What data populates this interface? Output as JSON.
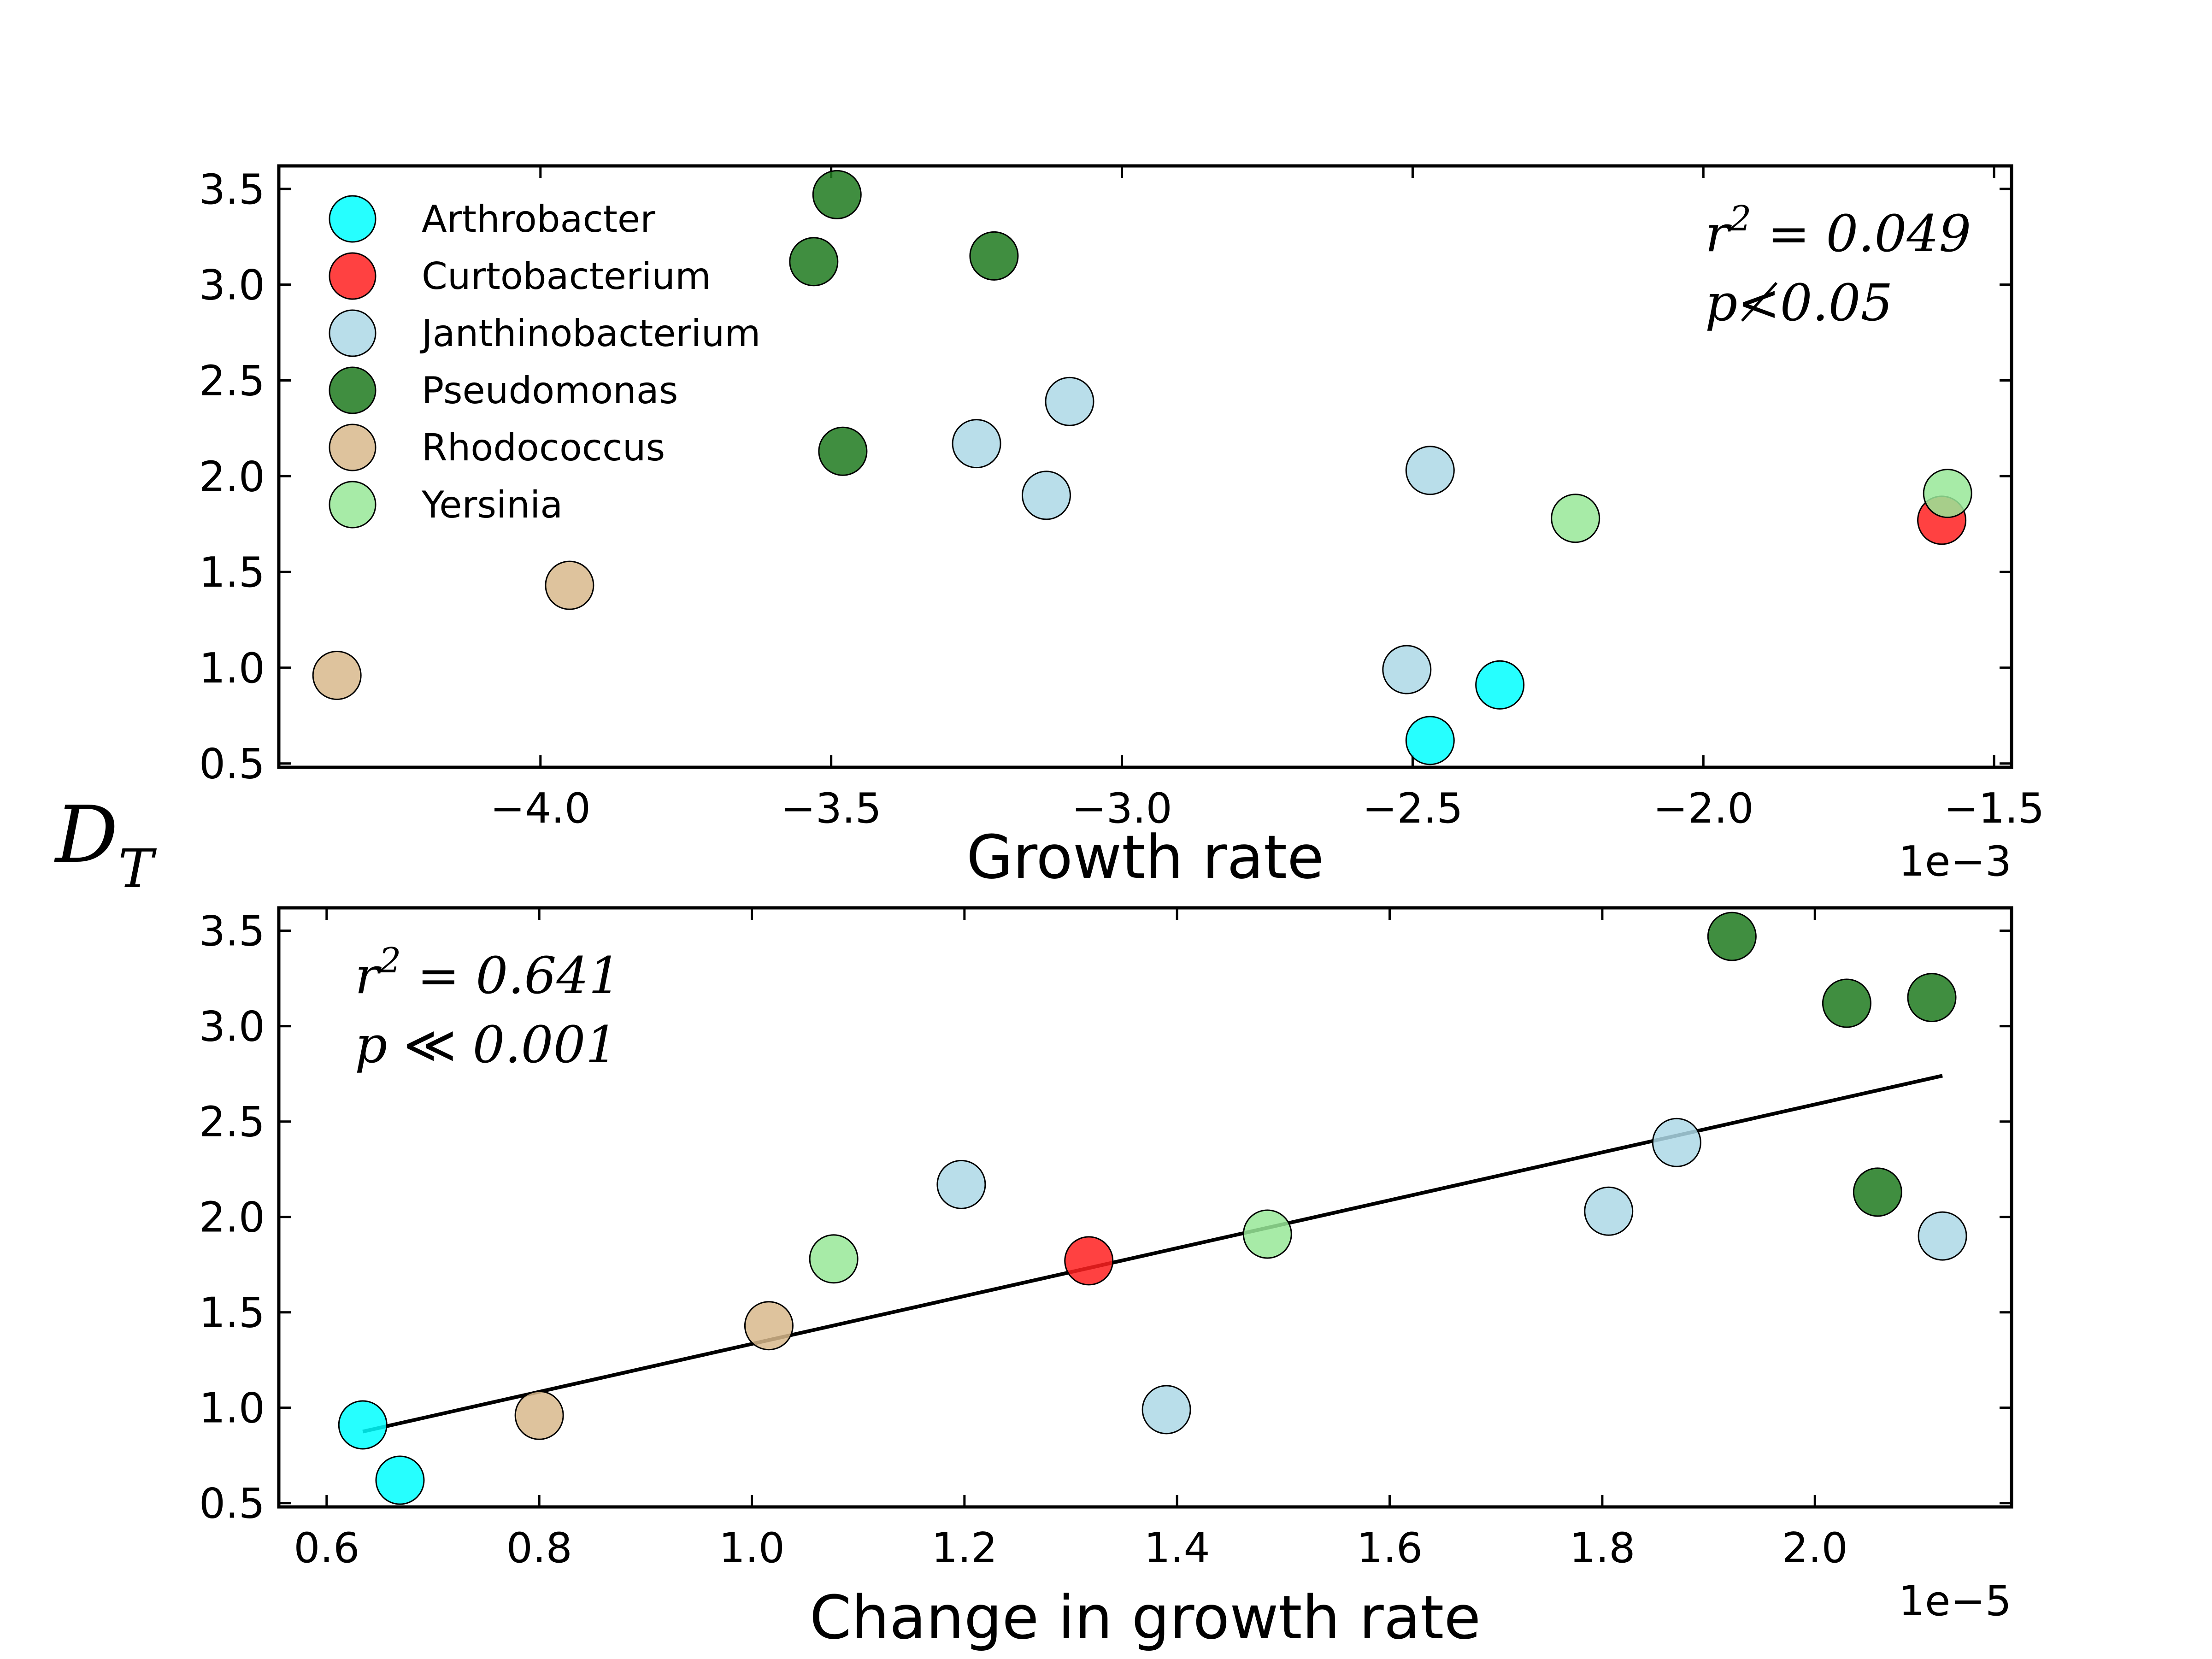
{
  "figure": {
    "shared_ylabel": "D",
    "shared_ylabel_sub": "T"
  },
  "chart_data": [
    {
      "type": "scatter",
      "xlabel": "Growth rate",
      "x_offset_label": "1e−3",
      "xlim": [
        -4.45,
        -1.47
      ],
      "ylim": [
        0.48,
        3.62
      ],
      "xticks": [
        -4.0,
        -3.5,
        -3.0,
        -2.5,
        -2.0,
        -1.5
      ],
      "xtick_labels": [
        "−4.0",
        "−3.5",
        "−3.0",
        "−2.5",
        "−2.0",
        "−1.5"
      ],
      "yticks": [
        0.5,
        1.0,
        1.5,
        2.0,
        2.5,
        3.0,
        3.5
      ],
      "ytick_labels": [
        "0.5",
        "1.0",
        "1.5",
        "2.0",
        "2.5",
        "3.0",
        "3.5"
      ],
      "grid": false,
      "legend_position": "top-left",
      "annotation": {
        "line1": {
          "base": "r",
          "sup": "2",
          "rest": " = 0.049"
        },
        "line2": {
          "base": "p",
          "rel": "≮",
          "rest": "0.05"
        },
        "position": "top-right"
      },
      "series": [
        {
          "name": "Arthrobacter",
          "color": "#00ffff",
          "points": [
            [
              -2.35,
              0.91
            ],
            [
              -2.47,
              0.62
            ]
          ]
        },
        {
          "name": "Curtobacterium",
          "color": "#ff2020",
          "points": [
            [
              -1.59,
              1.77
            ]
          ]
        },
        {
          "name": "Janthinobacterium",
          "color": "#add8e6",
          "points": [
            [
              -3.09,
              2.39
            ],
            [
              -3.25,
              2.17
            ],
            [
              -3.13,
              1.9
            ],
            [
              -2.47,
              2.03
            ],
            [
              -2.51,
              0.99
            ]
          ]
        },
        {
          "name": "Pseudomonas",
          "color": "#1e7a1e",
          "points": [
            [
              -3.49,
              3.47
            ],
            [
              -3.53,
              3.12
            ],
            [
              -3.22,
              3.15
            ],
            [
              -3.48,
              2.13
            ]
          ]
        },
        {
          "name": "Rhodococcus",
          "color": "#d8b88c",
          "points": [
            [
              -4.35,
              0.96
            ],
            [
              -3.95,
              1.43
            ]
          ]
        },
        {
          "name": "Yersinia",
          "color": "#98e898",
          "points": [
            [
              -2.22,
              1.78
            ],
            [
              -1.58,
              1.91
            ]
          ]
        }
      ]
    },
    {
      "type": "scatter",
      "xlabel": "Change in growth rate",
      "x_offset_label": "1e−5",
      "xlim": [
        0.555,
        2.185
      ],
      "ylim": [
        0.48,
        3.62
      ],
      "xticks": [
        0.6,
        0.8,
        1.0,
        1.2,
        1.4,
        1.6,
        1.8,
        2.0
      ],
      "xtick_labels": [
        "0.6",
        "0.8",
        "1.0",
        "1.2",
        "1.4",
        "1.6",
        "1.8",
        "2.0"
      ],
      "yticks": [
        0.5,
        1.0,
        1.5,
        2.0,
        2.5,
        3.0,
        3.5
      ],
      "ytick_labels": [
        "0.5",
        "1.0",
        "1.5",
        "2.0",
        "2.5",
        "3.0",
        "3.5"
      ],
      "grid": false,
      "annotation": {
        "line1": {
          "base": "r",
          "sup": "2",
          "rest": " = 0.641"
        },
        "line2": {
          "base": "p",
          "rel": " ≪ ",
          "rest": "0.001"
        },
        "position": "top-left"
      },
      "fit_line": {
        "x": [
          0.634,
          2.12
        ],
        "y": [
          0.875,
          2.74
        ]
      },
      "series": [
        {
          "name": "Arthrobacter",
          "color": "#00ffff",
          "points": [
            [
              0.634,
              0.91
            ],
            [
              0.669,
              0.62
            ]
          ]
        },
        {
          "name": "Curtobacterium",
          "color": "#ff2020",
          "points": [
            [
              1.317,
              1.77
            ]
          ]
        },
        {
          "name": "Janthinobacterium",
          "color": "#add8e6",
          "points": [
            [
              1.197,
              2.17
            ],
            [
              1.39,
              0.99
            ],
            [
              1.806,
              2.03
            ],
            [
              1.87,
              2.39
            ],
            [
              2.12,
              1.9
            ]
          ]
        },
        {
          "name": "Pseudomonas",
          "color": "#1e7a1e",
          "points": [
            [
              1.922,
              3.47
            ],
            [
              2.03,
              3.12
            ],
            [
              2.11,
              3.15
            ],
            [
              2.059,
              2.13
            ]
          ]
        },
        {
          "name": "Rhodococcus",
          "color": "#d8b88c",
          "points": [
            [
              0.8,
              0.96
            ],
            [
              1.016,
              1.43
            ]
          ]
        },
        {
          "name": "Yersinia",
          "color": "#98e898",
          "points": [
            [
              1.077,
              1.78
            ],
            [
              1.485,
              1.91
            ]
          ]
        }
      ]
    }
  ]
}
